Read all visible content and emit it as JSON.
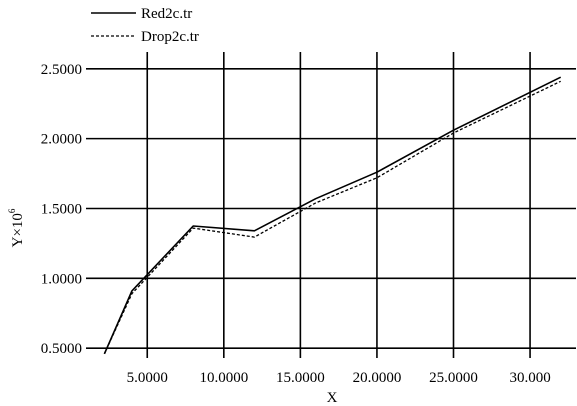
{
  "chart_data": {
    "type": "line",
    "title": "",
    "xlabel": "X",
    "ylabel_base": "Y×10",
    "ylabel_exponent": "6",
    "xlim": [
      1.0,
      33.0
    ],
    "ylim": [
      0.43,
      2.62
    ],
    "grid": true,
    "legend_placement": "top-left",
    "x_ticks": [
      {
        "value": 5,
        "label": "5.0000"
      },
      {
        "value": 10,
        "label": "10.0000"
      },
      {
        "value": 15,
        "label": "15.0000"
      },
      {
        "value": 20,
        "label": "20.0000"
      },
      {
        "value": 25,
        "label": "25.0000"
      },
      {
        "value": 30,
        "label": "30.000"
      }
    ],
    "y_ticks": [
      {
        "value": 0.5,
        "label": "0.5000"
      },
      {
        "value": 1.0,
        "label": "1.0000"
      },
      {
        "value": 1.5,
        "label": "1.5000"
      },
      {
        "value": 2.0,
        "label": "2.0000"
      },
      {
        "value": 2.5,
        "label": "2.5000"
      }
    ],
    "series": [
      {
        "name": "Red2c.tr",
        "style": "solid",
        "points": [
          [
            2.2,
            0.46
          ],
          [
            4.0,
            0.91
          ],
          [
            8.0,
            1.375
          ],
          [
            12.0,
            1.34
          ],
          [
            16.0,
            1.57
          ],
          [
            20.0,
            1.76
          ],
          [
            25.0,
            2.06
          ],
          [
            32.0,
            2.44
          ]
        ]
      },
      {
        "name": "Drop2c.tr",
        "style": "dashed",
        "points": [
          [
            2.2,
            0.46
          ],
          [
            4.0,
            0.89
          ],
          [
            8.0,
            1.36
          ],
          [
            12.0,
            1.295
          ],
          [
            16.0,
            1.54
          ],
          [
            20.0,
            1.72
          ],
          [
            25.0,
            2.04
          ],
          [
            32.0,
            2.41
          ]
        ]
      }
    ]
  }
}
